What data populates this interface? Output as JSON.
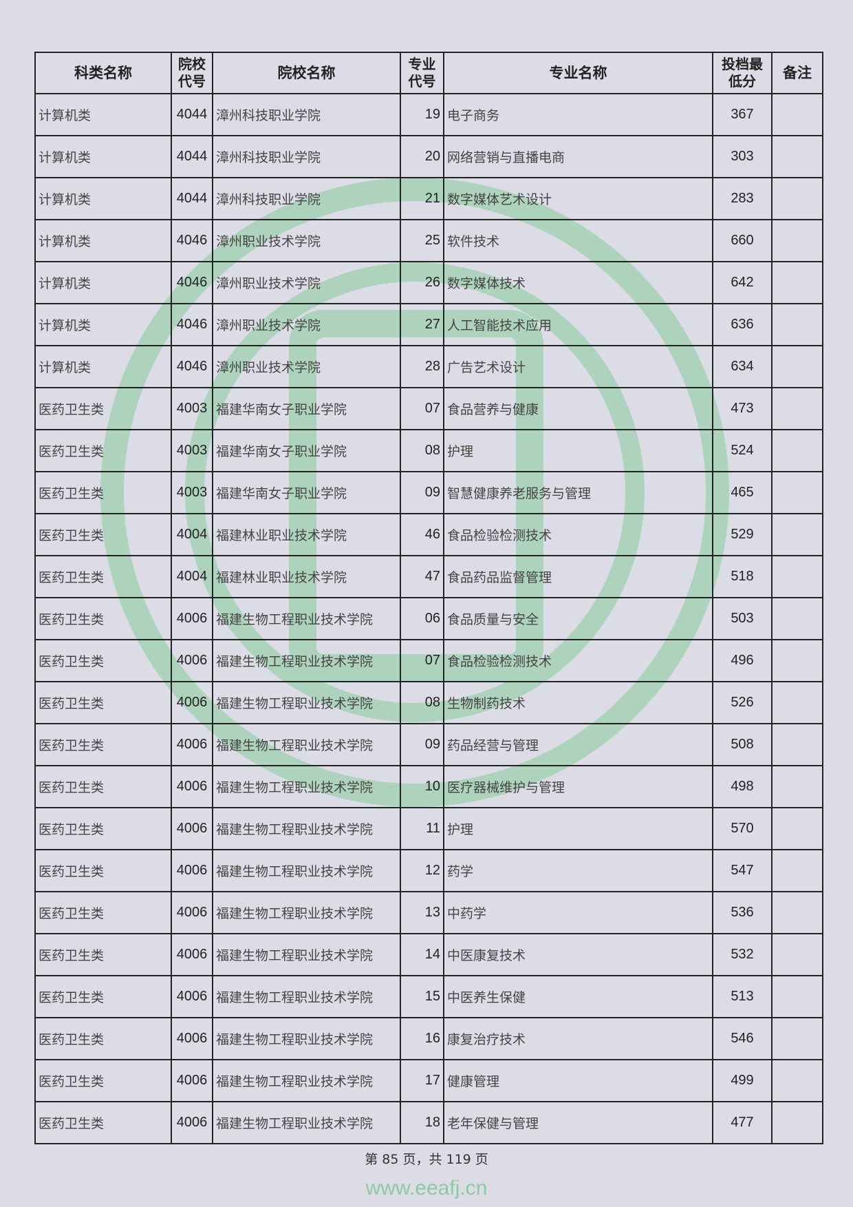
{
  "watermark": {
    "url": "www.eeafj.cn",
    "seal_color": "#8fc9a3"
  },
  "table": {
    "headers": [
      "科类名称",
      "院校代号",
      "院校名称",
      "专业代号",
      "专业名称",
      "投档最低分",
      "备注"
    ],
    "rows": [
      [
        "计算机类",
        "4044",
        "漳州科技职业学院",
        "19",
        "电子商务",
        "367",
        ""
      ],
      [
        "计算机类",
        "4044",
        "漳州科技职业学院",
        "20",
        "网络营销与直播电商",
        "303",
        ""
      ],
      [
        "计算机类",
        "4044",
        "漳州科技职业学院",
        "21",
        "数字媒体艺术设计",
        "283",
        ""
      ],
      [
        "计算机类",
        "4046",
        "漳州职业技术学院",
        "25",
        "软件技术",
        "660",
        ""
      ],
      [
        "计算机类",
        "4046",
        "漳州职业技术学院",
        "26",
        "数字媒体技术",
        "642",
        ""
      ],
      [
        "计算机类",
        "4046",
        "漳州职业技术学院",
        "27",
        "人工智能技术应用",
        "636",
        ""
      ],
      [
        "计算机类",
        "4046",
        "漳州职业技术学院",
        "28",
        "广告艺术设计",
        "634",
        ""
      ],
      [
        "医药卫生类",
        "4003",
        "福建华南女子职业学院",
        "07",
        "食品营养与健康",
        "473",
        ""
      ],
      [
        "医药卫生类",
        "4003",
        "福建华南女子职业学院",
        "08",
        "护理",
        "524",
        ""
      ],
      [
        "医药卫生类",
        "4003",
        "福建华南女子职业学院",
        "09",
        "智慧健康养老服务与管理",
        "465",
        ""
      ],
      [
        "医药卫生类",
        "4004",
        "福建林业职业技术学院",
        "46",
        "食品检验检测技术",
        "529",
        ""
      ],
      [
        "医药卫生类",
        "4004",
        "福建林业职业技术学院",
        "47",
        "食品药品监督管理",
        "518",
        ""
      ],
      [
        "医药卫生类",
        "4006",
        "福建生物工程职业技术学院",
        "06",
        "食品质量与安全",
        "503",
        ""
      ],
      [
        "医药卫生类",
        "4006",
        "福建生物工程职业技术学院",
        "07",
        "食品检验检测技术",
        "496",
        ""
      ],
      [
        "医药卫生类",
        "4006",
        "福建生物工程职业技术学院",
        "08",
        "生物制药技术",
        "526",
        ""
      ],
      [
        "医药卫生类",
        "4006",
        "福建生物工程职业技术学院",
        "09",
        "药品经营与管理",
        "508",
        ""
      ],
      [
        "医药卫生类",
        "4006",
        "福建生物工程职业技术学院",
        "10",
        "医疗器械维护与管理",
        "498",
        ""
      ],
      [
        "医药卫生类",
        "4006",
        "福建生物工程职业技术学院",
        "11",
        "护理",
        "570",
        ""
      ],
      [
        "医药卫生类",
        "4006",
        "福建生物工程职业技术学院",
        "12",
        "药学",
        "547",
        ""
      ],
      [
        "医药卫生类",
        "4006",
        "福建生物工程职业技术学院",
        "13",
        "中药学",
        "536",
        ""
      ],
      [
        "医药卫生类",
        "4006",
        "福建生物工程职业技术学院",
        "14",
        "中医康复技术",
        "532",
        ""
      ],
      [
        "医药卫生类",
        "4006",
        "福建生物工程职业技术学院",
        "15",
        "中医养生保健",
        "513",
        ""
      ],
      [
        "医药卫生类",
        "4006",
        "福建生物工程职业技术学院",
        "16",
        "康复治疗技术",
        "546",
        ""
      ],
      [
        "医药卫生类",
        "4006",
        "福建生物工程职业技术学院",
        "17",
        "健康管理",
        "499",
        ""
      ],
      [
        "医药卫生类",
        "4006",
        "福建生物工程职业技术学院",
        "18",
        "老年保健与管理",
        "477",
        ""
      ]
    ]
  },
  "footer": {
    "page_text": "第 85 页，共 119 页"
  }
}
